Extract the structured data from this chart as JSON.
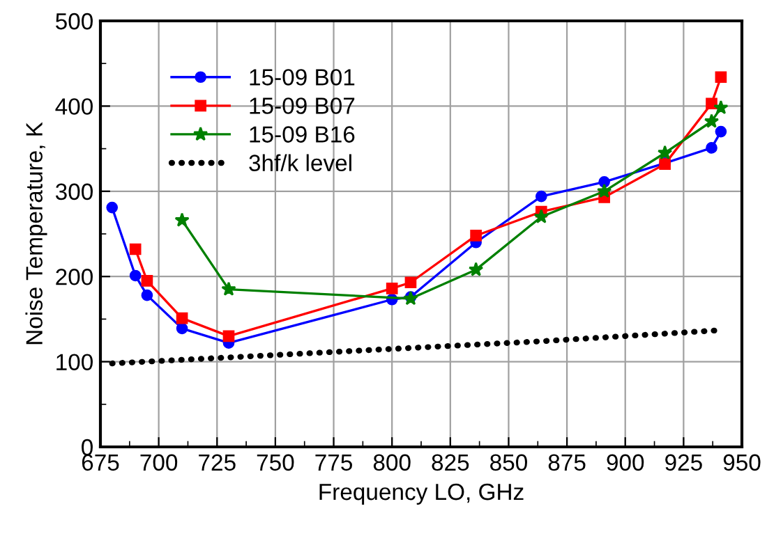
{
  "chart_data": {
    "type": "line",
    "xlabel": "Frequency LO, GHz",
    "ylabel": "Noise Temperature, K",
    "xlim": [
      675,
      950
    ],
    "xticks": [
      675,
      700,
      725,
      750,
      775,
      800,
      825,
      850,
      875,
      900,
      925,
      950
    ],
    "ylim": [
      0,
      500
    ],
    "yticks": [
      0,
      100,
      200,
      300,
      400,
      500
    ],
    "grid": true,
    "legend": "top left",
    "series": [
      {
        "name": "15-09 B01",
        "color": "#0000ff",
        "marker": "circle",
        "x": [
          680,
          690,
          695,
          710,
          730,
          800,
          808,
          836,
          864,
          891,
          917,
          937,
          941
        ],
        "values": [
          281,
          201,
          178,
          139,
          122,
          173,
          176,
          240,
          294,
          311,
          333,
          351,
          370
        ]
      },
      {
        "name": "15-09 B07",
        "color": "#ff0000",
        "marker": "square",
        "x": [
          690,
          695,
          710,
          730,
          800,
          808,
          836,
          864,
          891,
          917,
          937,
          941
        ],
        "values": [
          232,
          195,
          151,
          130,
          186,
          193,
          248,
          276,
          293,
          332,
          403,
          434
        ]
      },
      {
        "name": "15-09 B16",
        "color": "#008000",
        "marker": "star",
        "x": [
          710,
          730,
          808,
          836,
          864,
          891,
          917,
          937,
          941
        ],
        "values": [
          266,
          185,
          174,
          208,
          270,
          300,
          345,
          382,
          398
        ]
      },
      {
        "name": "3hf/k level",
        "color": "#000000",
        "marker": "none",
        "line_style": "dotted",
        "x": [
          680,
          730,
          800,
          864,
          941
        ],
        "values": [
          98,
          105,
          115,
          124,
          137
        ]
      }
    ]
  }
}
